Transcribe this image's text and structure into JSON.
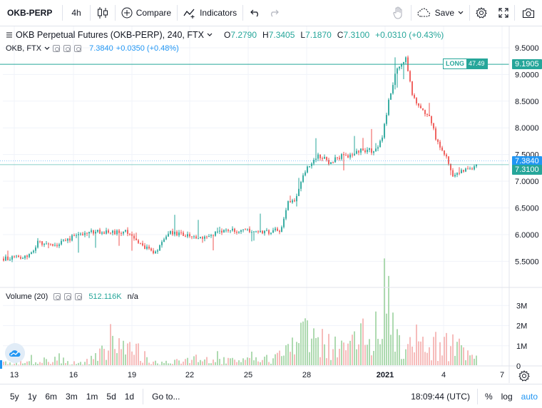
{
  "toolbar": {
    "symbol": "OKB-PERP",
    "interval": "4h",
    "compare": "Compare",
    "indicators": "Indicators",
    "save": "Save"
  },
  "legend": {
    "title": "OKB Perpetual Futures (OKB-PERP), 240, FTX",
    "open_key": "O",
    "open": "7.2790",
    "high_key": "H",
    "high": "7.3405",
    "low_key": "L",
    "low": "7.1870",
    "close_key": "C",
    "close": "7.3100",
    "change": "+0.0310 (+0.43%)",
    "compare_symbol": "OKB, FTX",
    "compare_value": "7.3840",
    "compare_change": "+0.0350 (+0.48%)"
  },
  "volume_legend": {
    "title": "Volume (20)",
    "value": "512.116K",
    "ma": "n/a"
  },
  "price_labels": {
    "long_tag": "LONG",
    "long_value": "47.49",
    "long_price": "9.1905",
    "compare_price": "7.3840",
    "last_price": "7.3100"
  },
  "bottom_bar": {
    "ranges": [
      "5y",
      "1y",
      "6m",
      "3m",
      "1m",
      "5d",
      "1d"
    ],
    "goto": "Go to...",
    "time": "18:09:44 (UTC)",
    "percent": "%",
    "log": "log",
    "auto": "auto"
  },
  "colors": {
    "up": "#26a69a",
    "down": "#ef5350",
    "line": "#2196f3",
    "long": "#26a69a"
  },
  "chart_data": {
    "type": "candlestick",
    "price_axis_ticks": [
      "9.5000",
      "9.0000",
      "8.5000",
      "8.0000",
      "7.5000",
      "7.0000",
      "6.5000",
      "6.0000",
      "5.5000"
    ],
    "price_ylim": [
      5.05,
      9.9
    ],
    "volume_axis_ticks": [
      "3M",
      "2M",
      "1M",
      "0"
    ],
    "volume_ylim": [
      0,
      3400000
    ],
    "x_tick_labels": [
      "13",
      "16",
      "19",
      "22",
      "25",
      "28",
      "2021",
      "4",
      "7"
    ],
    "anchors_close": [
      [
        0,
        5.55
      ],
      [
        6,
        5.56
      ],
      [
        10,
        5.6
      ],
      [
        12,
        5.62
      ],
      [
        16,
        5.86
      ],
      [
        22,
        5.8
      ],
      [
        28,
        5.86
      ],
      [
        35,
        6.02
      ],
      [
        42,
        6.06
      ],
      [
        50,
        6.04
      ],
      [
        57,
        6.05
      ],
      [
        63,
        5.88
      ],
      [
        69,
        5.66
      ],
      [
        72,
        5.72
      ],
      [
        78,
        6.03
      ],
      [
        84,
        5.99
      ],
      [
        90,
        5.93
      ],
      [
        98,
        6.02
      ],
      [
        106,
        6.08
      ],
      [
        112,
        6.08
      ],
      [
        122,
        6.05
      ],
      [
        126,
        6.06
      ],
      [
        130,
        6.1
      ],
      [
        133,
        6.62
      ],
      [
        136,
        6.65
      ],
      [
        140,
        7.1
      ],
      [
        143,
        7.3
      ],
      [
        147,
        7.5
      ],
      [
        152,
        7.36
      ],
      [
        157,
        7.46
      ],
      [
        163,
        7.5
      ],
      [
        167,
        7.6
      ],
      [
        173,
        7.56
      ],
      [
        177,
        7.8
      ],
      [
        180,
        8.5
      ],
      [
        184,
        9.15
      ],
      [
        188,
        9.3
      ],
      [
        191,
        8.6
      ],
      [
        195,
        8.38
      ],
      [
        199,
        8.2
      ],
      [
        203,
        7.7
      ],
      [
        207,
        7.47
      ],
      [
        210,
        7.05
      ],
      [
        213,
        7.15
      ],
      [
        217,
        7.22
      ],
      [
        221,
        7.31
      ]
    ],
    "volume_anchors": [
      [
        0,
        250000
      ],
      [
        20,
        450000
      ],
      [
        40,
        380000
      ],
      [
        52,
        2000000
      ],
      [
        70,
        350000
      ],
      [
        90,
        500000
      ],
      [
        115,
        400000
      ],
      [
        130,
        800000
      ],
      [
        138,
        2300000
      ],
      [
        150,
        1900000
      ],
      [
        160,
        1300000
      ],
      [
        172,
        3000000
      ],
      [
        175,
        3350000
      ],
      [
        180,
        3200000
      ],
      [
        186,
        1800000
      ],
      [
        195,
        1400000
      ],
      [
        205,
        1700000
      ],
      [
        212,
        1200000
      ],
      [
        221,
        500000
      ]
    ],
    "candle_count": 222,
    "last_volume": 512116,
    "long_position_price": 9.1905
  }
}
